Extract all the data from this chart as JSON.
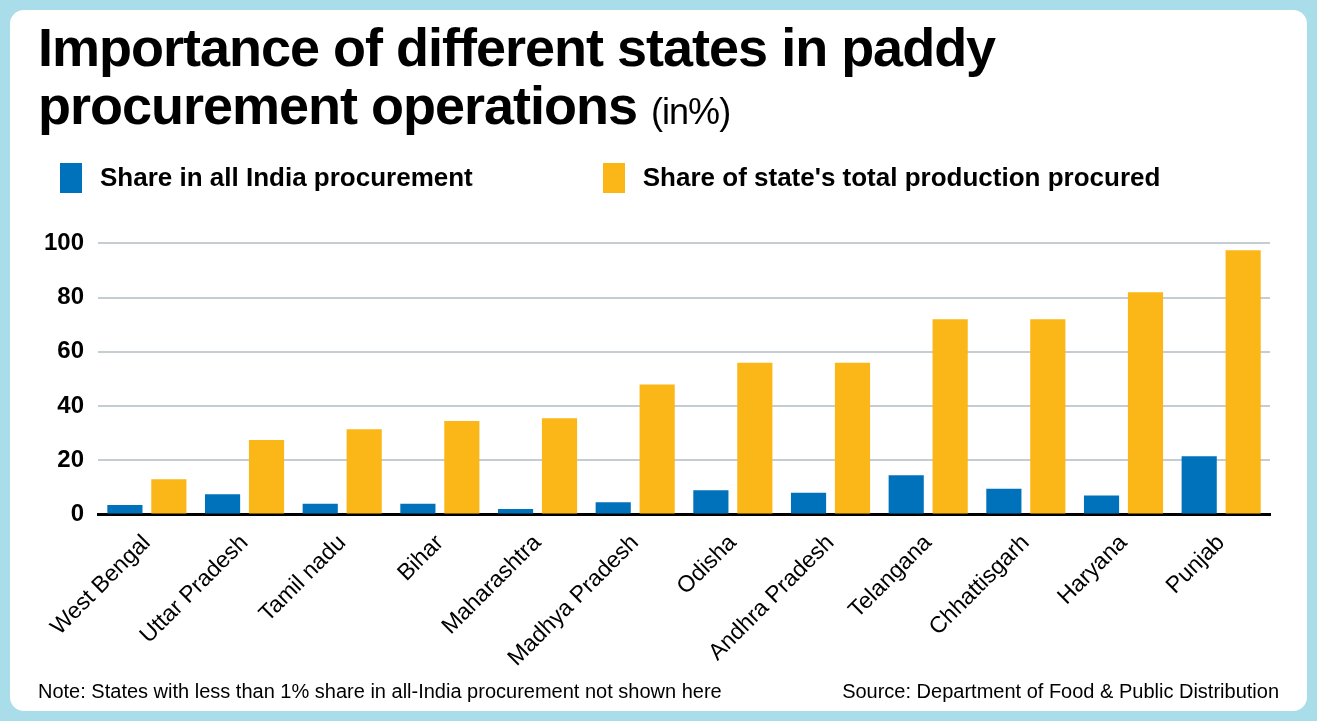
{
  "chart_data": {
    "type": "bar",
    "title": "Importance of different states in paddy procurement operations",
    "subtitle": "(in%)",
    "categories": [
      "West Bengal",
      "Uttar Pradesh",
      "Tamil nadu",
      "Bihar",
      "Maharashtra",
      "Madhya Pradesh",
      "Odisha",
      "Andhra Pradesh",
      "Telangana",
      "Chhattisgarh",
      "Haryana",
      "Punjab"
    ],
    "series": [
      {
        "name": "Share in all India procurement",
        "color": "#0072bb",
        "values": [
          3.5,
          7.5,
          4,
          4,
          2,
          4.5,
          9,
          8,
          14.5,
          9.5,
          7,
          21.5
        ]
      },
      {
        "name": "Share of state's total production procured",
        "color": "#fbb617",
        "values": [
          13,
          27.5,
          31.5,
          34.5,
          35.5,
          48,
          56,
          56,
          72,
          72,
          82,
          97.5
        ]
      }
    ],
    "ylim": [
      0,
      100
    ],
    "yticks": [
      0,
      20,
      40,
      60,
      80,
      100
    ],
    "grid": "y",
    "legend": "top left",
    "annotations": [
      "Note: States with less than 1% share in all-India procurement not shown here",
      "Source: Department of Food & Public Distribution"
    ]
  }
}
